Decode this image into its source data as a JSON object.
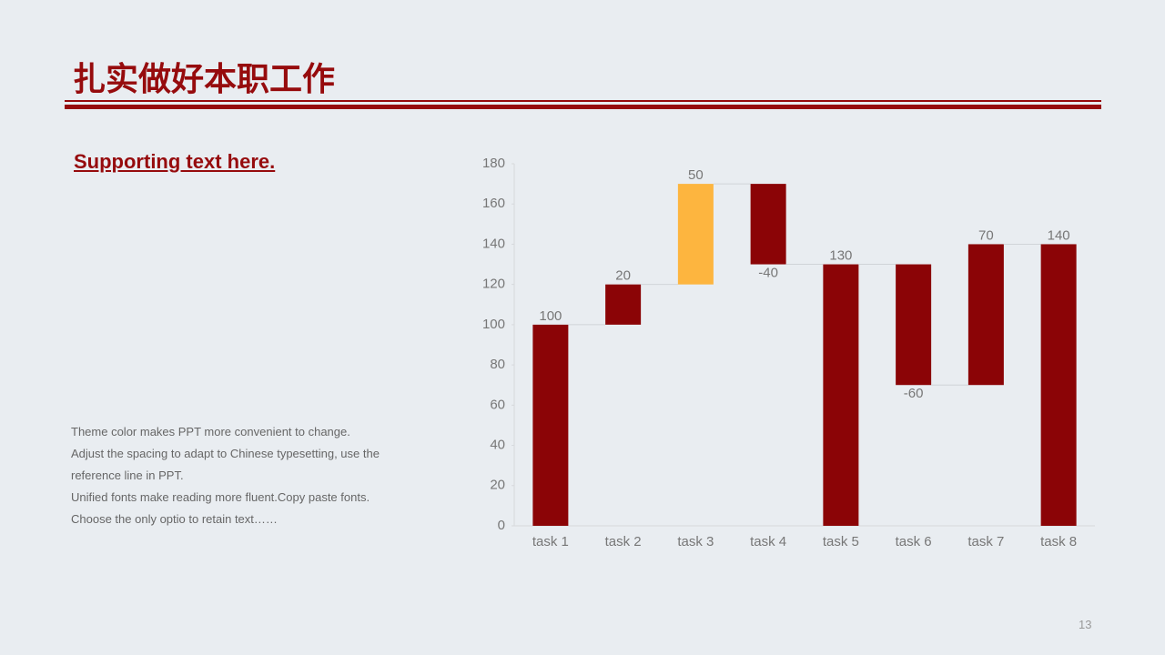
{
  "header": {
    "title": "扎实做好本职工作"
  },
  "subtitle": "Supporting text here.",
  "body": [
    "Theme color makes PPT more convenient to change.",
    "Adjust the spacing to adapt to Chinese typesetting, use the",
    "reference line in PPT.",
    "Unified fonts make reading more fluent.Copy paste fonts.",
    "Choose the only optio to retain text……"
  ],
  "page_number": "13",
  "chart_data": {
    "type": "waterfall",
    "categories": [
      "task 1",
      "task 2",
      "task 3",
      "task 4",
      "task 5",
      "task 6",
      "task 7",
      "task 8"
    ],
    "values": [
      100,
      20,
      50,
      -40,
      130,
      -60,
      70,
      140
    ],
    "totals": [
      false,
      false,
      false,
      false,
      true,
      false,
      false,
      true
    ],
    "colors": [
      "#8b0406",
      "#8b0406",
      "#fdb53f",
      "#8b0406",
      "#8b0406",
      "#8b0406",
      "#8b0406",
      "#8b0406"
    ],
    "ylim": [
      0,
      180
    ],
    "yticks": [
      0,
      20,
      40,
      60,
      80,
      100,
      120,
      140,
      160,
      180
    ],
    "grid": false
  }
}
